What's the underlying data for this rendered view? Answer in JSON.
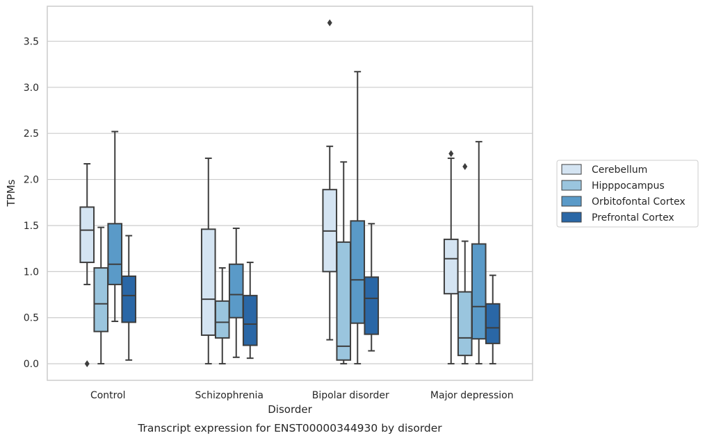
{
  "caption": "Transcript expression for ENST00000344930 by disorder",
  "chart_data": {
    "type": "boxplot",
    "xlabel": "Disorder",
    "ylabel": "TPMs",
    "ylim": [
      -0.18,
      3.88
    ],
    "yticks": [
      0.0,
      0.5,
      1.0,
      1.5,
      2.0,
      2.5,
      3.0,
      3.5
    ],
    "ytick_labels": [
      "0.0",
      "0.5",
      "1.0",
      "1.5",
      "2.0",
      "2.5",
      "3.0",
      "3.5"
    ],
    "grid": "y",
    "legend_position": "right",
    "categories": [
      "Control",
      "Schizophrenia",
      "Bipolar disorder",
      "Major depression"
    ],
    "series": [
      {
        "name": "Cerebellum",
        "color": "#d4e4f2",
        "boxes": [
          {
            "whislo": 0.86,
            "q1": 1.1,
            "med": 1.45,
            "q3": 1.7,
            "whishi": 2.17,
            "fliers": [
              0.0
            ]
          },
          {
            "whislo": 0.0,
            "q1": 0.31,
            "med": 0.7,
            "q3": 1.46,
            "whishi": 2.23,
            "fliers": []
          },
          {
            "whislo": 0.26,
            "q1": 1.0,
            "med": 1.44,
            "q3": 1.89,
            "whishi": 2.36,
            "fliers": [
              3.7
            ]
          },
          {
            "whislo": 0.0,
            "q1": 0.76,
            "med": 1.14,
            "q3": 1.35,
            "whishi": 2.23,
            "fliers": [
              2.28
            ]
          }
        ]
      },
      {
        "name": "Hipppocampus",
        "color": "#9ac5de",
        "boxes": [
          {
            "whislo": 0.0,
            "q1": 0.35,
            "med": 0.65,
            "q3": 1.04,
            "whishi": 1.48,
            "fliers": []
          },
          {
            "whislo": 0.0,
            "q1": 0.28,
            "med": 0.45,
            "q3": 0.68,
            "whishi": 1.04,
            "fliers": []
          },
          {
            "whislo": 0.0,
            "q1": 0.04,
            "med": 0.19,
            "q3": 1.32,
            "whishi": 2.19,
            "fliers": []
          },
          {
            "whislo": 0.0,
            "q1": 0.09,
            "med": 0.28,
            "q3": 0.78,
            "whishi": 1.33,
            "fliers": [
              2.14
            ]
          }
        ]
      },
      {
        "name": "Orbitofontal Cortex",
        "color": "#5a9ac8",
        "boxes": [
          {
            "whislo": 0.46,
            "q1": 0.86,
            "med": 1.08,
            "q3": 1.52,
            "whishi": 2.52,
            "fliers": []
          },
          {
            "whislo": 0.07,
            "q1": 0.5,
            "med": 0.75,
            "q3": 1.08,
            "whishi": 1.47,
            "fliers": []
          },
          {
            "whislo": 0.0,
            "q1": 0.44,
            "med": 0.91,
            "q3": 1.55,
            "whishi": 3.17,
            "fliers": []
          },
          {
            "whislo": 0.0,
            "q1": 0.27,
            "med": 0.62,
            "q3": 1.3,
            "whishi": 2.41,
            "fliers": []
          }
        ]
      },
      {
        "name": "Prefrontal Cortex",
        "color": "#2a67a6",
        "boxes": [
          {
            "whislo": 0.04,
            "q1": 0.45,
            "med": 0.74,
            "q3": 0.95,
            "whishi": 1.39,
            "fliers": []
          },
          {
            "whislo": 0.06,
            "q1": 0.2,
            "med": 0.43,
            "q3": 0.74,
            "whishi": 1.1,
            "fliers": []
          },
          {
            "whislo": 0.14,
            "q1": 0.32,
            "med": 0.71,
            "q3": 0.94,
            "whishi": 1.52,
            "fliers": []
          },
          {
            "whislo": 0.0,
            "q1": 0.22,
            "med": 0.39,
            "q3": 0.65,
            "whishi": 0.96,
            "fliers": []
          }
        ]
      }
    ]
  }
}
